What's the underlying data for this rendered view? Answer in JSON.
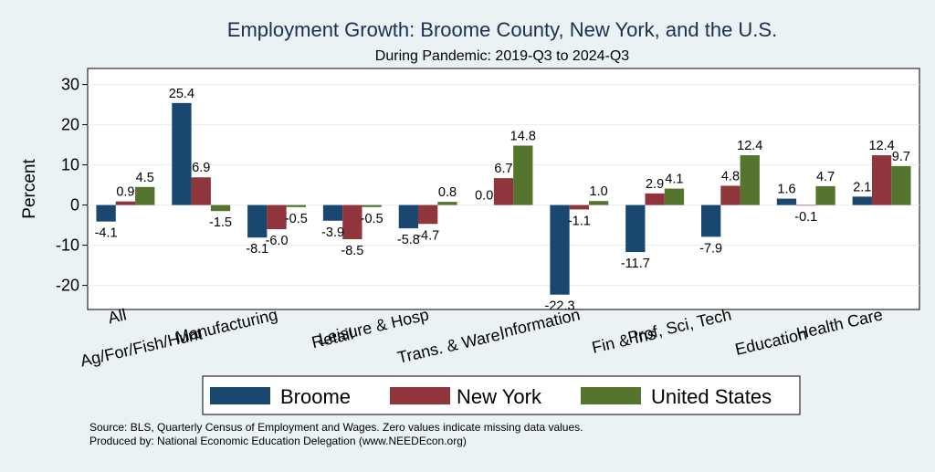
{
  "chart_data": {
    "type": "bar",
    "title": "Employment Growth: Broome County, New York, and the U.S.",
    "subtitle": "During Pandemic: 2019-Q3 to 2024-Q3",
    "ylabel": "Percent",
    "xlabel": "",
    "ylim": [
      -26,
      34
    ],
    "yticks": [
      30,
      20,
      10,
      0,
      -10,
      -20
    ],
    "grid": true,
    "categories": [
      "All",
      "Ag/For/Fish/Hunt",
      "Manufacturing",
      "Retail",
      "Leisure & Hosp",
      "Trans. & Ware.",
      "Information",
      "Fin & Ins",
      "Prof, Sci, Tech",
      "Education",
      "Health Care"
    ],
    "series": [
      {
        "name": "Broome",
        "color": "#1a476f",
        "values": [
          -4.1,
          25.4,
          -8.1,
          -3.9,
          -5.8,
          0.0,
          -22.3,
          -11.7,
          -7.9,
          1.6,
          2.1
        ],
        "labels": [
          "-4.1",
          "25.4",
          "-8.1",
          "-3.9",
          "-5.8",
          "0.0",
          "-22.3",
          "-11.7",
          "-7.9",
          "1.6",
          "2.1"
        ]
      },
      {
        "name": "New York",
        "color": "#90353b",
        "values": [
          0.9,
          6.9,
          -6.0,
          -8.5,
          -4.7,
          6.7,
          -1.1,
          2.9,
          4.8,
          -0.1,
          12.4
        ],
        "labels": [
          "0.9",
          "6.9",
          "-6.0",
          "-8.5",
          "-4.7",
          "6.7",
          "-1.1",
          "2.9",
          "4.8",
          "-0.1",
          "12.4"
        ]
      },
      {
        "name": "United States",
        "color": "#55752f",
        "values": [
          4.5,
          -1.5,
          -0.5,
          -0.5,
          0.8,
          14.8,
          1.0,
          4.1,
          12.4,
          4.7,
          9.7
        ],
        "labels": [
          "4.5",
          "-1.5",
          "-0.5",
          "-0.5",
          "0.8",
          "14.8",
          "1.0",
          "4.1",
          "12.4",
          "4.7",
          "9.7"
        ]
      }
    ],
    "legend_position": "bottom",
    "notes": [
      "Source: BLS, Quarterly Census of Employment and Wages. Zero values indicate missing data values.",
      "Produced by: National Economic Education Delegation (www.NEEDEcon.org)"
    ]
  }
}
